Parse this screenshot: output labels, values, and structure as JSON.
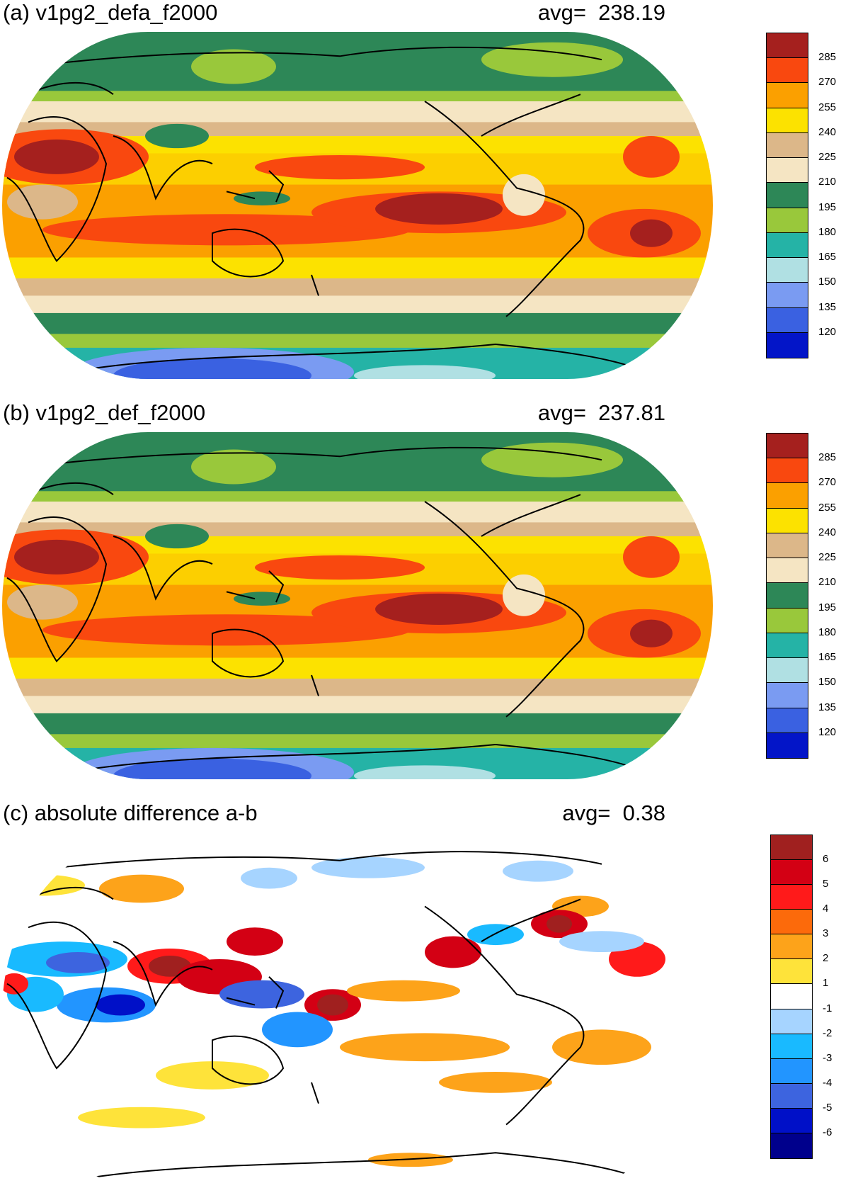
{
  "panels": [
    {
      "title": "(a) v1pg2_defa_f2000",
      "avg_label": "avg=",
      "avg_value": "238.19",
      "colorbar": {
        "labels": [
          "285",
          "270",
          "255",
          "240",
          "225",
          "210",
          "195",
          "180",
          "165",
          "150",
          "135",
          "120"
        ],
        "colors": [
          "#a5201e",
          "#f9480f",
          "#fba000",
          "#fce200",
          "#dcb789",
          "#f5e5c3",
          "#2d8757",
          "#99c83b",
          "#25b3a6",
          "#b0e0e3",
          "#7a9bf2",
          "#3a61e1",
          "#0315c8"
        ]
      },
      "field": "absolute"
    },
    {
      "title": "(b) v1pg2_def_f2000",
      "avg_label": "avg=",
      "avg_value": "237.81",
      "colorbar": {
        "labels": [
          "285",
          "270",
          "255",
          "240",
          "225",
          "210",
          "195",
          "180",
          "165",
          "150",
          "135",
          "120"
        ],
        "colors": [
          "#a5201e",
          "#f9480f",
          "#fba000",
          "#fce200",
          "#dcb789",
          "#f5e5c3",
          "#2d8757",
          "#99c83b",
          "#25b3a6",
          "#b0e0e3",
          "#7a9bf2",
          "#3a61e1",
          "#0315c8"
        ]
      },
      "field": "absolute"
    },
    {
      "title": "(c) absolute difference a-b",
      "avg_label": "avg=",
      "avg_value": "0.38",
      "colorbar": {
        "labels": [
          "6",
          "5",
          "4",
          "3",
          "2",
          "1",
          "-1",
          "-2",
          "-3",
          "-4",
          "-5",
          "-6"
        ],
        "colors": [
          "#a0201f",
          "#d30014",
          "#ff1a1a",
          "#fc6a0b",
          "#fda31a",
          "#fee33a",
          "#ffffff",
          "#a6d4ff",
          "#19baff",
          "#2295ff",
          "#3d64df",
          "#0010c8",
          "#00008c"
        ]
      },
      "field": "difference"
    }
  ]
}
